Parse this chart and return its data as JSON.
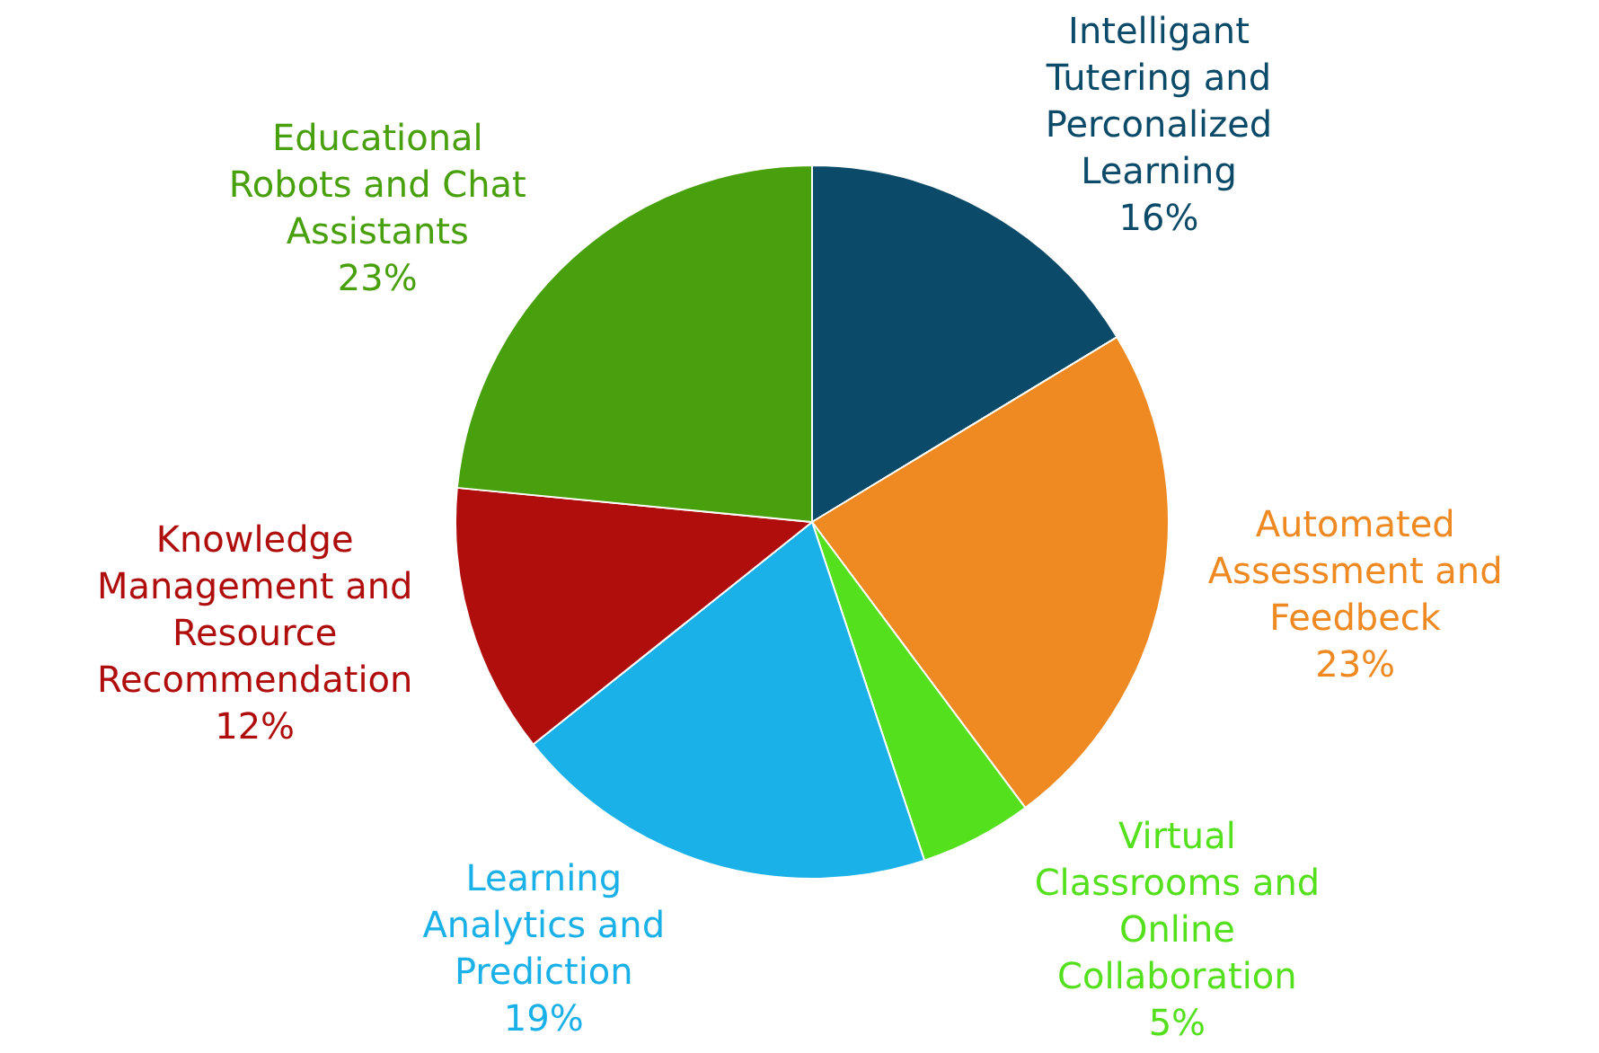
{
  "chart_data": {
    "type": "pie",
    "categories": [
      "Intelligant Tutering and Perconalized Learning",
      "Automated Assessment and Feedbeck",
      "Virtual Classrooms and Online Collaboration",
      "Learning Analytics and Prediction",
      "Knowledge Management and Resource Recommendation",
      "Educational Robots and Chat Assistants"
    ],
    "values": [
      16,
      23,
      5,
      19,
      12,
      23
    ],
    "value_labels": [
      "16%",
      "23%",
      "5%",
      "19%",
      "12%",
      "23%"
    ],
    "colors": [
      "#0b4a68",
      "#ef8a22",
      "#55e01e",
      "#1ab0e8",
      "#b00d0d",
      "#47a00c"
    ]
  }
}
